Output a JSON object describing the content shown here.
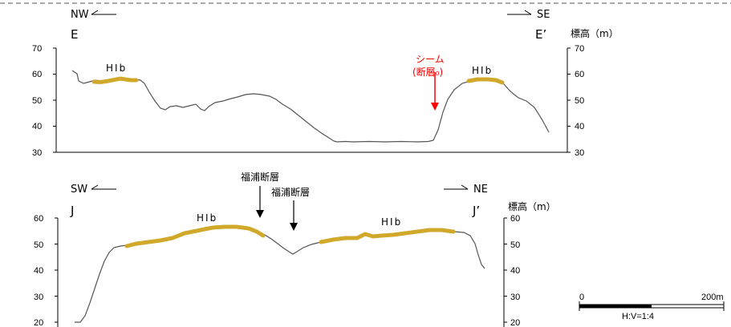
{
  "colors": {
    "profile_line": "#555555",
    "terrace": "#d0a92a",
    "fault_red": "#ff0000",
    "frame": "#000000"
  },
  "profiles": [
    {
      "id": "E",
      "dir_left": "NW",
      "dir_right": "SE",
      "end_left": "E",
      "end_right": "E’",
      "axis_right_title": "標高（m）",
      "y_ticks": [
        "70",
        "60",
        "50",
        "40",
        "30"
      ],
      "terrace_labels": [
        "HIb",
        "HIb"
      ],
      "seam_label_line1": "シーム",
      "seam_label_line2": "(断層₀)"
    },
    {
      "id": "J",
      "dir_left": "SW",
      "dir_right": "NE",
      "end_left": "J",
      "end_right": "J’",
      "axis_right_title": "標高（m）",
      "y_ticks": [
        "60",
        "50",
        "40",
        "30",
        "20"
      ],
      "terrace_labels": [
        "HIb",
        "HIb"
      ],
      "fault_labels": [
        "福浦断層",
        "福浦断層"
      ]
    }
  ],
  "scale": {
    "zero": "0",
    "max": "200m",
    "ratio": "H:V=1:4"
  }
}
